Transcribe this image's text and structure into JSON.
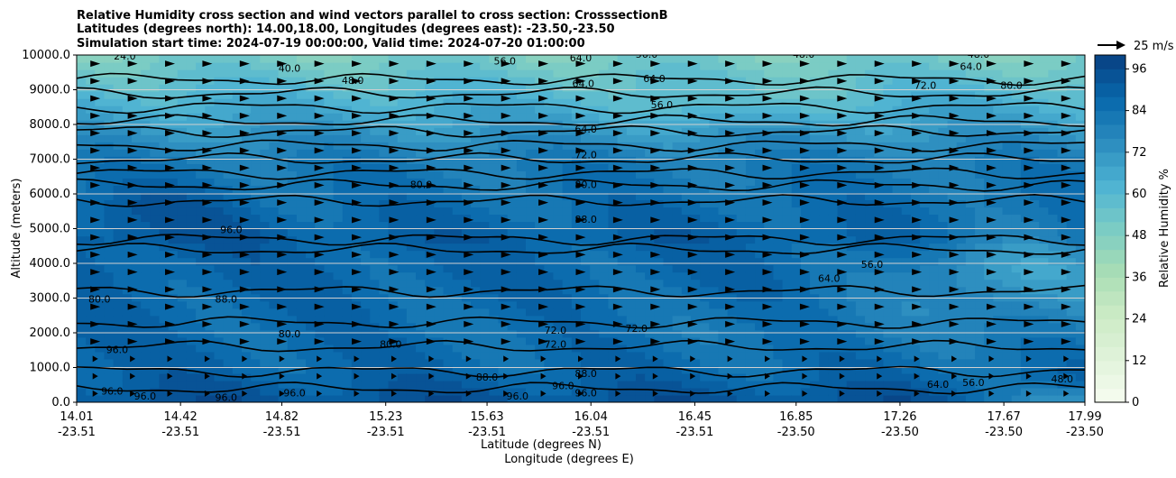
{
  "chart_data": {
    "type": "contour",
    "title_lines": [
      "Relative Humidity cross section and wind vectors parallel to cross section: CrosssectionB",
      "Latitudes (degrees north): 14.00,18.00, Longitudes (degrees east): -23.50,-23.50",
      "Simulation start time: 2024-07-19 00:00:00, Valid time: 2024-07-20 01:00:00"
    ],
    "ylabel": "Altitude (meters)",
    "xlabel_lat": "Latitude (degrees N)",
    "xlabel_lon": "Longitude (degrees E)",
    "ylim": [
      0,
      10000
    ],
    "y_ticks": [
      "0.0",
      "1000.0",
      "2000.0",
      "3000.0",
      "4000.0",
      "5000.0",
      "6000.0",
      "7000.0",
      "8000.0",
      "9000.0",
      "10000.0"
    ],
    "x_range": [
      14.01,
      17.99
    ],
    "x_ticks": [
      {
        "lat": "14.01",
        "lon": "-23.51"
      },
      {
        "lat": "14.42",
        "lon": "-23.51"
      },
      {
        "lat": "14.82",
        "lon": "-23.51"
      },
      {
        "lat": "15.23",
        "lon": "-23.51"
      },
      {
        "lat": "15.63",
        "lon": "-23.51"
      },
      {
        "lat": "16.04",
        "lon": "-23.51"
      },
      {
        "lat": "16.45",
        "lon": "-23.51"
      },
      {
        "lat": "16.85",
        "lon": "-23.50"
      },
      {
        "lat": "17.26",
        "lon": "-23.50"
      },
      {
        "lat": "17.67",
        "lon": "-23.50"
      },
      {
        "lat": "17.99",
        "lon": "-23.50"
      }
    ],
    "colorbar": {
      "label": "Relative Humidity %",
      "min": 0,
      "max": 100,
      "step": 4,
      "ticks": [
        "0",
        "12",
        "24",
        "36",
        "48",
        "60",
        "72",
        "84",
        "96"
      ]
    },
    "quiver_key": "25 m/s",
    "contour_levels": [
      24,
      40,
      48,
      56,
      64,
      72,
      80,
      88,
      96
    ],
    "contour_labels": [
      {
        "text": "40.0",
        "x": 14.85,
        "y": 9600
      },
      {
        "text": "48.0",
        "x": 15.1,
        "y": 9250
      },
      {
        "text": "24.0",
        "x": 14.2,
        "y": 9950
      },
      {
        "text": "56.0",
        "x": 15.7,
        "y": 9800
      },
      {
        "text": "64.0",
        "x": 16.0,
        "y": 9900
      },
      {
        "text": "64.0",
        "x": 16.01,
        "y": 9150
      },
      {
        "text": "64.0",
        "x": 16.29,
        "y": 9300
      },
      {
        "text": "56.0",
        "x": 16.32,
        "y": 8550
      },
      {
        "text": "56.0",
        "x": 16.26,
        "y": 10000
      },
      {
        "text": "64.0",
        "x": 17.54,
        "y": 9650
      },
      {
        "text": "72.0",
        "x": 17.36,
        "y": 9100
      },
      {
        "text": "80.0",
        "x": 17.7,
        "y": 9100
      },
      {
        "text": "64.0",
        "x": 16.02,
        "y": 7850
      },
      {
        "text": "72.0",
        "x": 16.02,
        "y": 7100
      },
      {
        "text": "80.0",
        "x": 15.37,
        "y": 6250
      },
      {
        "text": "80.0",
        "x": 16.02,
        "y": 6250
      },
      {
        "text": "96.0",
        "x": 14.62,
        "y": 4950
      },
      {
        "text": "88.0",
        "x": 16.02,
        "y": 5250
      },
      {
        "text": "64.0",
        "x": 16.98,
        "y": 3550
      },
      {
        "text": "56.0",
        "x": 17.15,
        "y": 3950
      },
      {
        "text": "80.0",
        "x": 14.1,
        "y": 2950
      },
      {
        "text": "88.0",
        "x": 14.6,
        "y": 2950
      },
      {
        "text": "80.0",
        "x": 14.85,
        "y": 1950
      },
      {
        "text": "80.0",
        "x": 15.25,
        "y": 1650
      },
      {
        "text": "72.0",
        "x": 15.9,
        "y": 2050
      },
      {
        "text": "72.0",
        "x": 15.9,
        "y": 1650
      },
      {
        "text": "72.0",
        "x": 16.22,
        "y": 2100
      },
      {
        "text": "96.0",
        "x": 14.17,
        "y": 1500
      },
      {
        "text": "88.0",
        "x": 15.63,
        "y": 700
      },
      {
        "text": "88.0",
        "x": 16.02,
        "y": 800
      },
      {
        "text": "96.0",
        "x": 15.93,
        "y": 450
      },
      {
        "text": "96.0",
        "x": 16.02,
        "y": 250
      },
      {
        "text": "96.0",
        "x": 15.75,
        "y": 150
      },
      {
        "text": "96.0",
        "x": 14.28,
        "y": 150
      },
      {
        "text": "96.0",
        "x": 14.6,
        "y": 120
      },
      {
        "text": "96.0",
        "x": 14.87,
        "y": 250
      },
      {
        "text": "96.0",
        "x": 14.15,
        "y": 300
      },
      {
        "text": "64.0",
        "x": 17.41,
        "y": 500
      },
      {
        "text": "56.0",
        "x": 17.55,
        "y": 550
      },
      {
        "text": "48.0",
        "x": 17.9,
        "y": 650
      },
      {
        "text": "48.0",
        "x": 16.88,
        "y": 10000
      },
      {
        "text": "48.0",
        "x": 17.57,
        "y": 10000
      }
    ]
  }
}
